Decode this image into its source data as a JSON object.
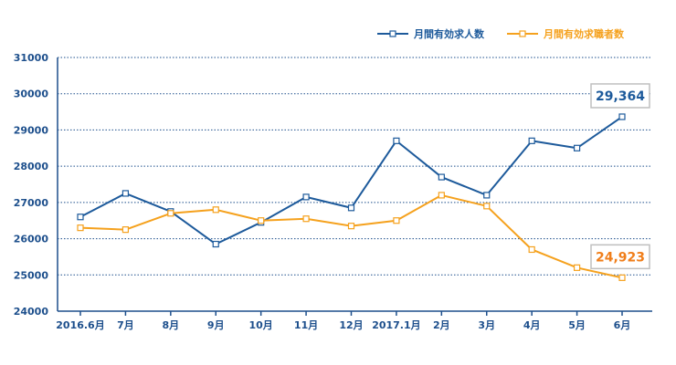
{
  "chart_data": {
    "type": "line",
    "title": "",
    "xlabel": "",
    "ylabel": "",
    "categories": [
      "2016.6月",
      "7月",
      "8月",
      "9月",
      "10月",
      "11月",
      "12月",
      "2017.1月",
      "2月",
      "3月",
      "4月",
      "5月",
      "6月"
    ],
    "ylim": [
      24000,
      31000
    ],
    "yticks": [
      24000,
      25000,
      26000,
      27000,
      28000,
      29000,
      30000,
      31000
    ],
    "grid": "horizontal-dotted",
    "legend_position": "top-right",
    "series": [
      {
        "name": "月間有効求人数",
        "color": "#1d5a9b",
        "values": [
          26600,
          27250,
          26750,
          25850,
          26450,
          27150,
          26850,
          28700,
          27700,
          27200,
          28700,
          28500,
          29364
        ]
      },
      {
        "name": "月間有効求職者数",
        "color": "#f5a11d",
        "values": [
          26300,
          26250,
          26700,
          26800,
          26500,
          26550,
          26350,
          26500,
          27200,
          26900,
          25700,
          25200,
          24923
        ]
      }
    ],
    "annotations": [
      {
        "text": "29,364",
        "series": 0,
        "index": 12,
        "color": "#1d5a9b"
      },
      {
        "text": "24,923",
        "series": 1,
        "index": 12,
        "color": "#f07e1a"
      }
    ]
  }
}
